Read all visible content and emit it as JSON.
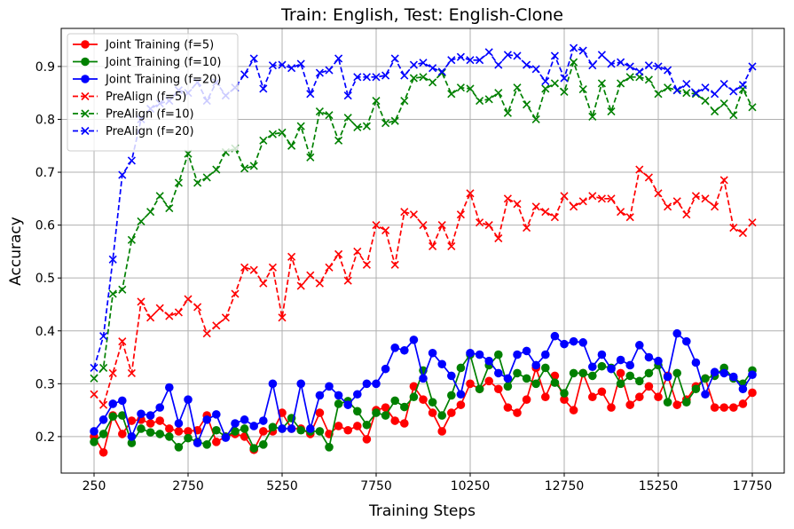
{
  "chart_data": {
    "type": "line",
    "title": "Train: English, Test: English-Clone",
    "xlabel": "Training Steps",
    "ylabel": "Accuracy",
    "xlim": [
      -623,
      18599
    ],
    "ylim": [
      0.131,
      0.972
    ],
    "grid": true,
    "legend_position": "top-left",
    "x_ticks": [
      250,
      2750,
      5250,
      7750,
      10250,
      12750,
      15250,
      17750
    ],
    "x_tick_labels": [
      "250",
      "2750",
      "5250",
      "7750",
      "10250",
      "12750",
      "15250",
      "17750"
    ],
    "y_ticks": [
      0.2,
      0.3,
      0.4,
      0.5,
      0.6,
      0.7,
      0.8,
      0.9
    ],
    "y_tick_labels": [
      "0.2",
      "0.3",
      "0.4",
      "0.5",
      "0.6",
      "0.7",
      "0.8",
      "0.9"
    ],
    "x_start": 250,
    "x_step": 250,
    "series": [
      {
        "name": "Joint Training (f=5)",
        "color": "#ff0000",
        "marker": "circle",
        "linestyle": "solid",
        "values": [
          0.2,
          0.17,
          0.24,
          0.205,
          0.23,
          0.232,
          0.225,
          0.23,
          0.215,
          0.21,
          0.21,
          0.212,
          0.24,
          0.19,
          0.2,
          0.205,
          0.2,
          0.175,
          0.21,
          0.21,
          0.245,
          0.215,
          0.215,
          0.205,
          0.245,
          0.205,
          0.22,
          0.212,
          0.22,
          0.195,
          0.25,
          0.255,
          0.23,
          0.225,
          0.295,
          0.27,
          0.245,
          0.21,
          0.245,
          0.26,
          0.3,
          0.29,
          0.305,
          0.29,
          0.255,
          0.245,
          0.27,
          0.33,
          0.275,
          0.315,
          0.27,
          0.25,
          0.32,
          0.275,
          0.285,
          0.255,
          0.32,
          0.26,
          0.275,
          0.295,
          0.275,
          0.315,
          0.26,
          0.27,
          0.295,
          0.31,
          0.255,
          0.255,
          0.255,
          0.262,
          0.283
        ]
      },
      {
        "name": "Joint Training (f=10)",
        "color": "#008000",
        "marker": "circle",
        "linestyle": "solid",
        "values": [
          0.19,
          0.205,
          0.238,
          0.24,
          0.188,
          0.215,
          0.208,
          0.205,
          0.2,
          0.18,
          0.197,
          0.19,
          0.185,
          0.212,
          0.2,
          0.21,
          0.215,
          0.178,
          0.185,
          0.218,
          0.215,
          0.235,
          0.212,
          0.21,
          0.21,
          0.18,
          0.262,
          0.267,
          0.248,
          0.222,
          0.245,
          0.24,
          0.268,
          0.256,
          0.275,
          0.325,
          0.265,
          0.24,
          0.278,
          0.33,
          0.355,
          0.29,
          0.335,
          0.355,
          0.295,
          0.32,
          0.31,
          0.3,
          0.33,
          0.302,
          0.282,
          0.32,
          0.32,
          0.315,
          0.333,
          0.33,
          0.3,
          0.315,
          0.305,
          0.32,
          0.335,
          0.265,
          0.32,
          0.265,
          0.29,
          0.31,
          0.315,
          0.33,
          0.31,
          0.3,
          0.325
        ]
      },
      {
        "name": "Joint Training (f=20)",
        "color": "#0000ff",
        "marker": "circle",
        "linestyle": "solid",
        "values": [
          0.21,
          0.232,
          0.262,
          0.268,
          0.2,
          0.243,
          0.24,
          0.255,
          0.293,
          0.225,
          0.27,
          0.188,
          0.232,
          0.242,
          0.198,
          0.225,
          0.232,
          0.22,
          0.23,
          0.3,
          0.215,
          0.215,
          0.3,
          0.215,
          0.278,
          0.295,
          0.278,
          0.26,
          0.28,
          0.3,
          0.3,
          0.328,
          0.368,
          0.363,
          0.383,
          0.31,
          0.358,
          0.337,
          0.315,
          0.28,
          0.358,
          0.355,
          0.343,
          0.32,
          0.31,
          0.355,
          0.362,
          0.335,
          0.355,
          0.39,
          0.375,
          0.38,
          0.378,
          0.332,
          0.355,
          0.328,
          0.345,
          0.335,
          0.373,
          0.35,
          0.343,
          0.313,
          0.395,
          0.38,
          0.34,
          0.28,
          0.322,
          0.32,
          0.313,
          0.29,
          0.317
        ]
      },
      {
        "name": "PreAlign (f=5)",
        "color": "#ff0000",
        "marker": "x",
        "linestyle": "dashed",
        "values": [
          0.28,
          0.26,
          0.32,
          0.38,
          0.32,
          0.455,
          0.425,
          0.443,
          0.428,
          0.435,
          0.46,
          0.445,
          0.395,
          0.41,
          0.425,
          0.47,
          0.52,
          0.515,
          0.49,
          0.52,
          0.425,
          0.54,
          0.485,
          0.505,
          0.49,
          0.52,
          0.545,
          0.495,
          0.55,
          0.525,
          0.6,
          0.59,
          0.525,
          0.625,
          0.62,
          0.6,
          0.56,
          0.6,
          0.56,
          0.62,
          0.66,
          0.605,
          0.6,
          0.575,
          0.65,
          0.64,
          0.595,
          0.635,
          0.625,
          0.615,
          0.655,
          0.635,
          0.645,
          0.655,
          0.65,
          0.65,
          0.625,
          0.615,
          0.705,
          0.69,
          0.66,
          0.635,
          0.645,
          0.62,
          0.655,
          0.65,
          0.635,
          0.685,
          0.595,
          0.585,
          0.605
        ]
      },
      {
        "name": "PreAlign (f=10)",
        "color": "#008000",
        "marker": "x",
        "linestyle": "dashed",
        "values": [
          0.31,
          0.33,
          0.47,
          0.478,
          0.572,
          0.607,
          0.625,
          0.655,
          0.632,
          0.68,
          0.735,
          0.68,
          0.69,
          0.705,
          0.738,
          0.745,
          0.707,
          0.712,
          0.76,
          0.772,
          0.775,
          0.75,
          0.787,
          0.728,
          0.815,
          0.808,
          0.76,
          0.803,
          0.785,
          0.787,
          0.835,
          0.793,
          0.797,
          0.835,
          0.878,
          0.88,
          0.87,
          0.888,
          0.848,
          0.86,
          0.858,
          0.835,
          0.838,
          0.85,
          0.812,
          0.86,
          0.828,
          0.8,
          0.858,
          0.868,
          0.852,
          0.908,
          0.857,
          0.805,
          0.868,
          0.815,
          0.868,
          0.88,
          0.88,
          0.875,
          0.848,
          0.86,
          0.855,
          0.85,
          0.848,
          0.835,
          0.815,
          0.83,
          0.808,
          0.857,
          0.823
        ]
      },
      {
        "name": "PreAlign (f=20)",
        "color": "#0000ff",
        "marker": "x",
        "linestyle": "dashed",
        "values": [
          0.33,
          0.39,
          0.535,
          0.695,
          0.722,
          0.8,
          0.82,
          0.83,
          0.835,
          0.855,
          0.85,
          0.87,
          0.835,
          0.87,
          0.845,
          0.86,
          0.885,
          0.915,
          0.858,
          0.902,
          0.903,
          0.897,
          0.905,
          0.848,
          0.888,
          0.893,
          0.915,
          0.845,
          0.88,
          0.88,
          0.88,
          0.883,
          0.915,
          0.883,
          0.903,
          0.907,
          0.897,
          0.89,
          0.912,
          0.918,
          0.912,
          0.912,
          0.927,
          0.903,
          0.922,
          0.92,
          0.903,
          0.895,
          0.872,
          0.92,
          0.878,
          0.935,
          0.93,
          0.902,
          0.922,
          0.905,
          0.908,
          0.9,
          0.89,
          0.902,
          0.9,
          0.893,
          0.855,
          0.867,
          0.85,
          0.86,
          0.848,
          0.867,
          0.853,
          0.865,
          0.9
        ]
      }
    ]
  }
}
